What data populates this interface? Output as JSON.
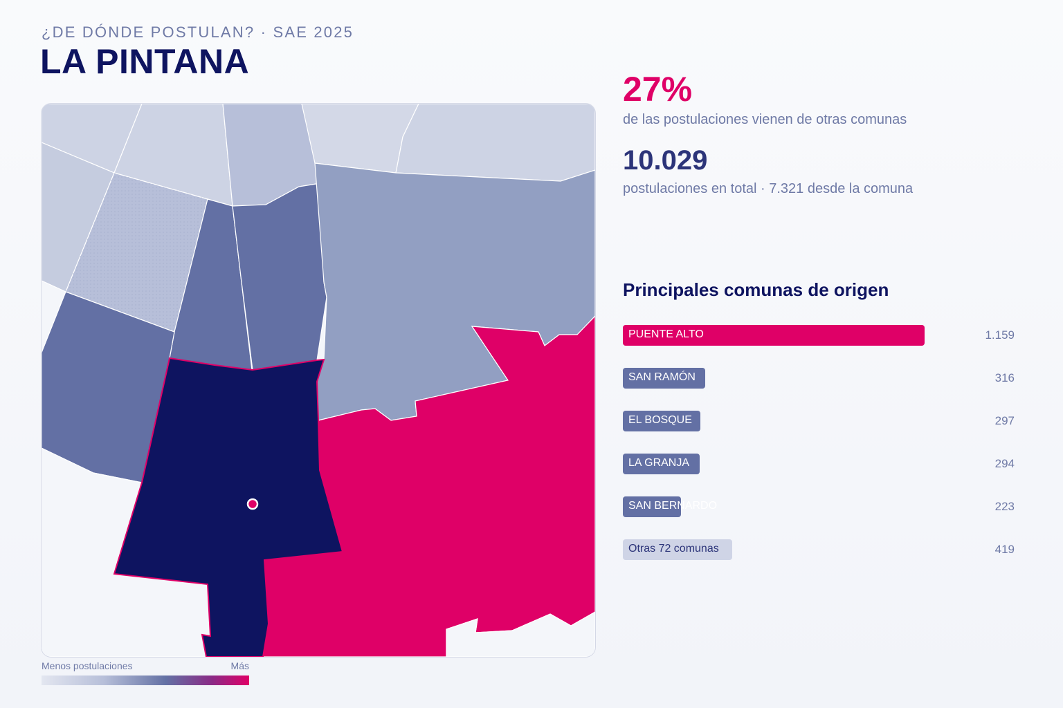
{
  "header": {
    "kicker": "¿DE DÓNDE POSTULAN? · SAE 2025",
    "title": "LA PINTANA"
  },
  "stats": {
    "pct_value": "27%",
    "pct_caption": "de las postulaciones vienen de otras comunas",
    "total_value": "10.029",
    "total_caption": "postulaciones en total · 7.321 desde la comuna"
  },
  "ranking": {
    "title": "Principales comunas de origen",
    "items": [
      {
        "label": "PUENTE ALTO",
        "value": "1.159",
        "count": 1159,
        "color": "#df0067",
        "dark_text": false
      },
      {
        "label": "SAN RAMÓN",
        "value": "316",
        "count": 316,
        "color": "#6370a4",
        "dark_text": false
      },
      {
        "label": "EL BOSQUE",
        "value": "297",
        "count": 297,
        "color": "#6370a4",
        "dark_text": false
      },
      {
        "label": "LA GRANJA",
        "value": "294",
        "count": 294,
        "color": "#6370a4",
        "dark_text": false
      },
      {
        "label": "SAN BERNARDO",
        "value": "223",
        "count": 223,
        "color": "#6370a4",
        "dark_text": false
      },
      {
        "label": "Otras 72 comunas",
        "value": "419",
        "count": 419,
        "color": "#cfd4e6",
        "dark_text": true
      }
    ]
  },
  "legend": {
    "low_label": "Menos postulaciones",
    "high_label": "Más"
  },
  "colors": {
    "brand_dark": "#0e1460",
    "accent": "#df0067",
    "mid": "#6370a4",
    "light": "#929fc2",
    "lighter": "#b7bfd9",
    "lightest": "#cdd3e4"
  }
}
